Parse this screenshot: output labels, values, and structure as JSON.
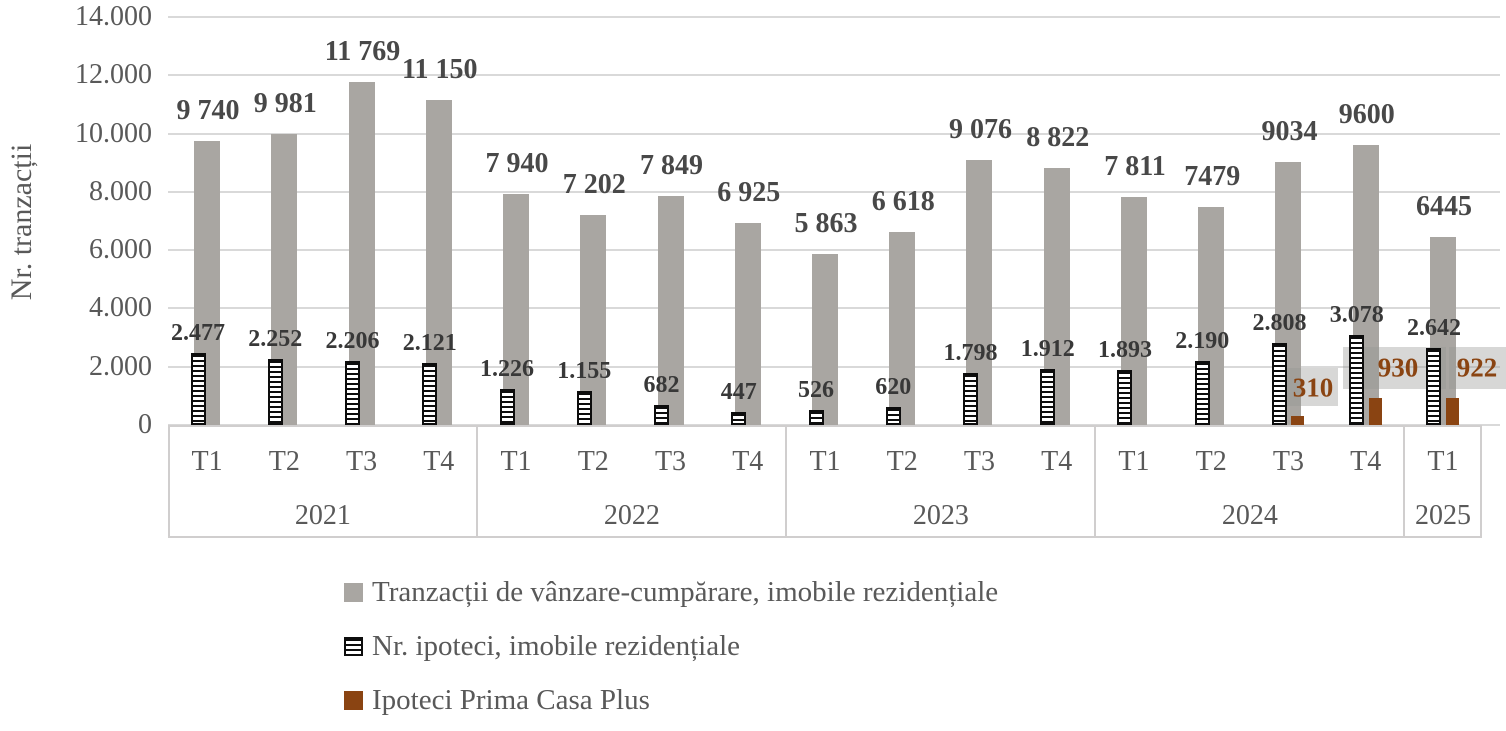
{
  "chart_data": {
    "type": "bar",
    "title": "",
    "ylabel": "Nr. tranzacții",
    "ylim": [
      0,
      14000
    ],
    "grid": true,
    "legend_position": "bottom-left",
    "y_ticks": [
      "14.000",
      "12.000",
      "10.000",
      "8.000",
      "6.000",
      "4.000",
      "2.000",
      "0"
    ],
    "categories": [
      "T1",
      "T2",
      "T3",
      "T4",
      "T1",
      "T2",
      "T3",
      "T4",
      "T1",
      "T2",
      "T3",
      "T4",
      "T1",
      "T2",
      "T3",
      "T4",
      "T1"
    ],
    "year_groups": [
      {
        "label": "2021",
        "count": 4
      },
      {
        "label": "2022",
        "count": 4
      },
      {
        "label": "2023",
        "count": 4
      },
      {
        "label": "2024",
        "count": 4
      },
      {
        "label": "2025",
        "count": 1
      }
    ],
    "series": [
      {
        "name": "Tranzacții de vânzare-cumpărare, imobile rezidențiale",
        "style": "solid-gray",
        "color": "#a9a6a2",
        "values": [
          9740,
          9981,
          11769,
          11150,
          7940,
          7202,
          7849,
          6925,
          5863,
          6618,
          9076,
          8822,
          7811,
          7479,
          9034,
          9600,
          6445
        ],
        "labels": [
          "9 740",
          "9 981",
          "11 769",
          "11 150",
          "7 940",
          "7 202",
          "7 849",
          "6 925",
          "5 863",
          "6 618",
          "9 076",
          "8 822",
          "7 811",
          "7479",
          "9034",
          "9600",
          "6445"
        ]
      },
      {
        "name": "Nr. ipoteci, imobile rezidențiale",
        "style": "striped-black-white",
        "color": "#0d0d0d",
        "values": [
          2477,
          2252,
          2206,
          2121,
          1226,
          1155,
          682,
          447,
          526,
          620,
          1798,
          1912,
          1893,
          2190,
          2808,
          3078,
          2642
        ],
        "labels": [
          "2.477",
          "2.252",
          "2.206",
          "2.121",
          "1.226",
          "1.155",
          "682",
          "447",
          "526",
          "620",
          "1.798",
          "1.912",
          "1.893",
          "2.190",
          "2.808",
          "3.078",
          "2.642"
        ]
      },
      {
        "name": "Ipoteci Prima Casa Plus",
        "style": "solid-brown",
        "color": "#8a4412",
        "values": [
          null,
          null,
          null,
          null,
          null,
          null,
          null,
          null,
          null,
          null,
          null,
          null,
          null,
          null,
          310,
          930,
          922
        ],
        "labels": [
          null,
          null,
          null,
          null,
          null,
          null,
          null,
          null,
          null,
          null,
          null,
          null,
          null,
          null,
          "310",
          "930",
          "922"
        ]
      }
    ]
  }
}
